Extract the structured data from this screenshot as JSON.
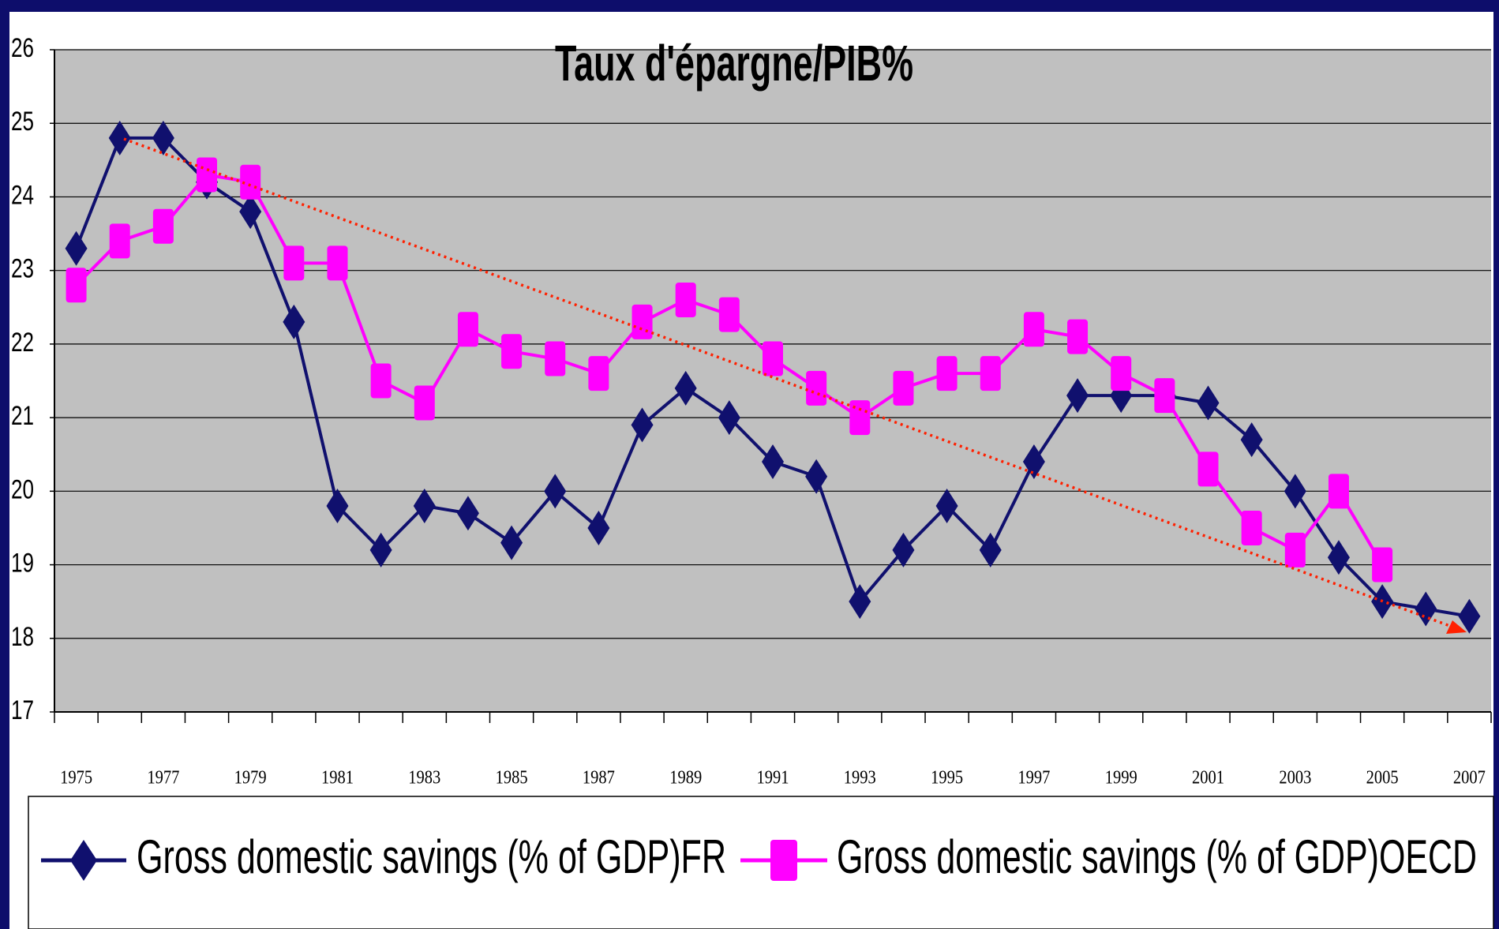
{
  "chart_data": {
    "type": "line",
    "title": "Taux d'épargne/PIB%",
    "categories": [
      "1975",
      null,
      "1977",
      null,
      "1979",
      null,
      "1981",
      null,
      "1983",
      null,
      "1985",
      null,
      "1987",
      null,
      "1989",
      null,
      "1991",
      null,
      "1993",
      null,
      "1995",
      null,
      "1997",
      null,
      "1999",
      null,
      "2001",
      null,
      "2003",
      null,
      "2005",
      null,
      "2007"
    ],
    "series": [
      {
        "name": "Gross domestic savings (% of GDP)FR",
        "color": "#10106e",
        "marker": "diamond",
        "values": [
          23.3,
          24.8,
          24.8,
          24.2,
          23.8,
          22.3,
          19.8,
          19.2,
          19.8,
          19.7,
          19.3,
          20.0,
          19.5,
          20.9,
          21.4,
          21.0,
          20.4,
          20.2,
          18.5,
          19.2,
          19.8,
          19.2,
          20.4,
          21.3,
          21.3,
          21.3,
          21.2,
          20.7,
          20.0,
          19.1,
          18.5,
          18.4,
          18.3
        ]
      },
      {
        "name": "Gross domestic savings (% of GDP)OECD",
        "color": "#ff00ff",
        "marker": "square",
        "values": [
          22.8,
          23.4,
          23.6,
          24.3,
          24.2,
          23.1,
          23.1,
          21.5,
          21.2,
          22.2,
          21.9,
          21.8,
          21.6,
          22.3,
          22.6,
          22.4,
          21.8,
          21.4,
          21.0,
          21.4,
          21.6,
          21.6,
          22.2,
          22.1,
          21.6,
          21.3,
          20.3,
          19.5,
          19.2,
          20.0,
          19.0,
          null,
          null
        ]
      }
    ],
    "ylim": [
      17,
      26
    ],
    "yticks": [
      17,
      18,
      19,
      20,
      21,
      22,
      23,
      24,
      25,
      26
    ],
    "grid": true,
    "legend": "bottom"
  }
}
